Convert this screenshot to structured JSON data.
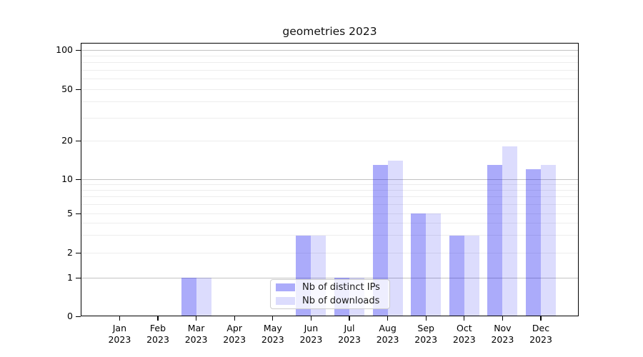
{
  "chart_data": {
    "type": "bar",
    "title": "geometries 2023",
    "categories": [
      "Jan 2023",
      "Feb 2023",
      "Mar 2023",
      "Apr 2023",
      "May 2023",
      "Jun 2023",
      "Jul 2023",
      "Aug 2023",
      "Sep 2023",
      "Oct 2023",
      "Nov 2023",
      "Dec 2023"
    ],
    "series": [
      {
        "name": "Nb of distinct IPs",
        "color": "rgba(10,10,240,0.34)",
        "values": [
          0,
          0,
          1,
          0,
          0,
          3,
          1,
          13,
          5,
          3,
          13,
          12
        ]
      },
      {
        "name": "Nb of downloads",
        "color": "rgba(10,10,240,0.14)",
        "values": [
          0,
          0,
          1,
          0,
          0,
          3,
          1,
          14,
          5,
          3,
          18,
          13
        ]
      }
    ],
    "yscale": "symlog",
    "ylim": [
      0,
      100
    ],
    "yticks": [
      "0",
      "1",
      "2",
      "5",
      "10",
      "20",
      "50",
      "100"
    ],
    "ytick_values": [
      0,
      1,
      2,
      5,
      10,
      20,
      50,
      100
    ],
    "major_gridline_values": [
      1,
      10,
      100
    ],
    "minor_gridline_values": [
      2,
      3,
      4,
      5,
      6,
      7,
      8,
      9,
      20,
      30,
      40,
      50,
      60,
      70,
      80,
      90
    ],
    "grid": true,
    "legend_position": "lower center",
    "colors": {
      "major_grid": "#c2c2c2",
      "minor_grid": "#ededed",
      "axis": "#000000",
      "legend_border": "#cccccc"
    }
  }
}
